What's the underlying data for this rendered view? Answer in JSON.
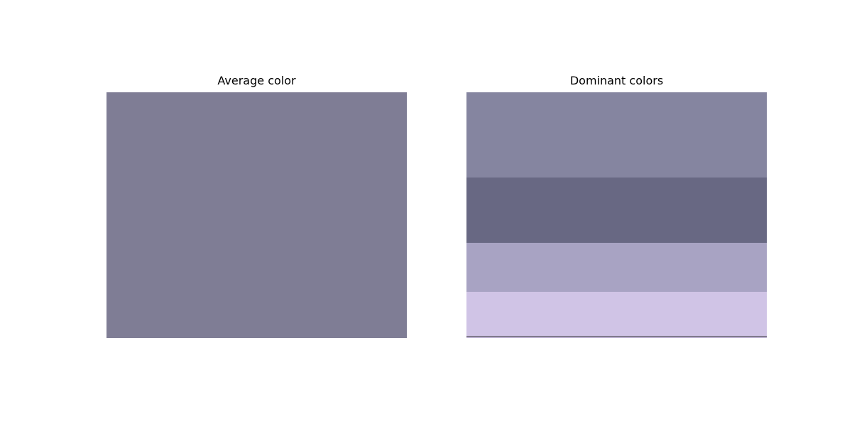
{
  "chart_data": [
    {
      "type": "bar",
      "title": "Average color",
      "values": [
        1
      ],
      "colors": [
        "#7f7d95"
      ]
    },
    {
      "type": "bar",
      "title": "Dominant colors",
      "series": [
        {
          "color": "#8585a0",
          "value": 0.347
        },
        {
          "color": "#686883",
          "value": 0.266
        },
        {
          "color": "#a8a3c3",
          "value": 0.199
        },
        {
          "color": "#d0c4e6",
          "value": 0.188
        }
      ]
    }
  ]
}
